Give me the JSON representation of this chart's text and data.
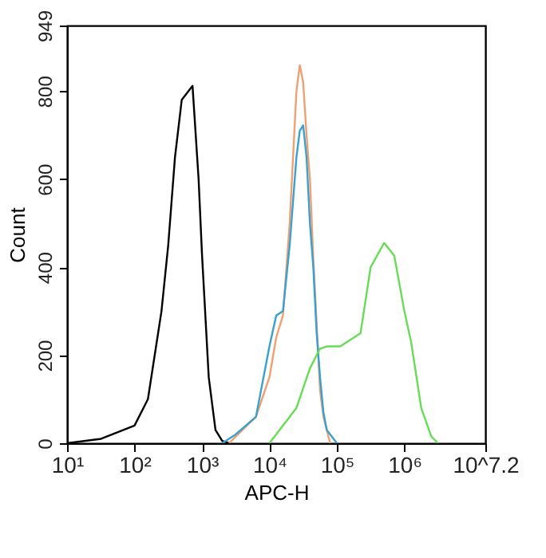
{
  "chart_data": {
    "type": "line",
    "xlabel": "APC-H",
    "ylabel": "Count",
    "log": "x",
    "grid": false,
    "marker": "none",
    "line_style": "solid",
    "xlim": [
      10,
      15848932
    ],
    "ylim": [
      0,
      949
    ],
    "xticks": [
      {
        "value": 10,
        "label": "10¹"
      },
      {
        "value": 100,
        "label": "10²"
      },
      {
        "value": 1000,
        "label": "10³"
      },
      {
        "value": 10000,
        "label": "10⁴"
      },
      {
        "value": 100000,
        "label": "10⁵"
      },
      {
        "value": 1000000,
        "label": "10⁶"
      },
      {
        "value": 15848932,
        "label": "10^7.2"
      }
    ],
    "yticks": [
      0,
      200,
      400,
      600,
      800,
      949
    ],
    "series": [
      {
        "color": "#000000",
        "x": [
          10,
          32,
          100,
          158,
          251,
          316,
          398,
          501,
          631,
          724,
          891,
          1000,
          1259,
          1585,
          1995,
          2512
        ],
        "values": [
          0,
          10,
          40,
          100,
          300,
          450,
          650,
          780,
          800,
          812,
          600,
          430,
          150,
          30,
          5,
          0
        ]
      },
      {
        "color": "#f0a070",
        "x": [
          2512,
          6310,
          10000,
          12589,
          15849,
          19953,
          25119,
          28184,
          31623,
          35481,
          39811,
          44668,
          56234,
          63096,
          79433
        ],
        "values": [
          0,
          60,
          150,
          240,
          290,
          500,
          800,
          859,
          820,
          700,
          600,
          420,
          120,
          60,
          0
        ]
      },
      {
        "color": "#3aa0d0",
        "x": [
          1995,
          3162,
          6310,
          10000,
          12589,
          15849,
          19953,
          25119,
          28184,
          31623,
          35481,
          39811,
          44668,
          50119,
          56234,
          63096,
          70795,
          100000
        ],
        "values": [
          0,
          20,
          60,
          220,
          290,
          300,
          450,
          650,
          710,
          722,
          650,
          500,
          400,
          250,
          150,
          70,
          30,
          0
        ]
      },
      {
        "color": "#66dd55",
        "x": [
          10000,
          25119,
          39811,
          56234,
          70795,
          112202,
          177828,
          223872,
          316228,
          501187,
          707946,
          1000000,
          1258925,
          1778279,
          2511886,
          3162278
        ],
        "values": [
          0,
          80,
          170,
          215,
          220,
          220,
          240,
          250,
          400,
          455,
          426,
          300,
          230,
          80,
          15,
          0
        ]
      }
    ]
  }
}
